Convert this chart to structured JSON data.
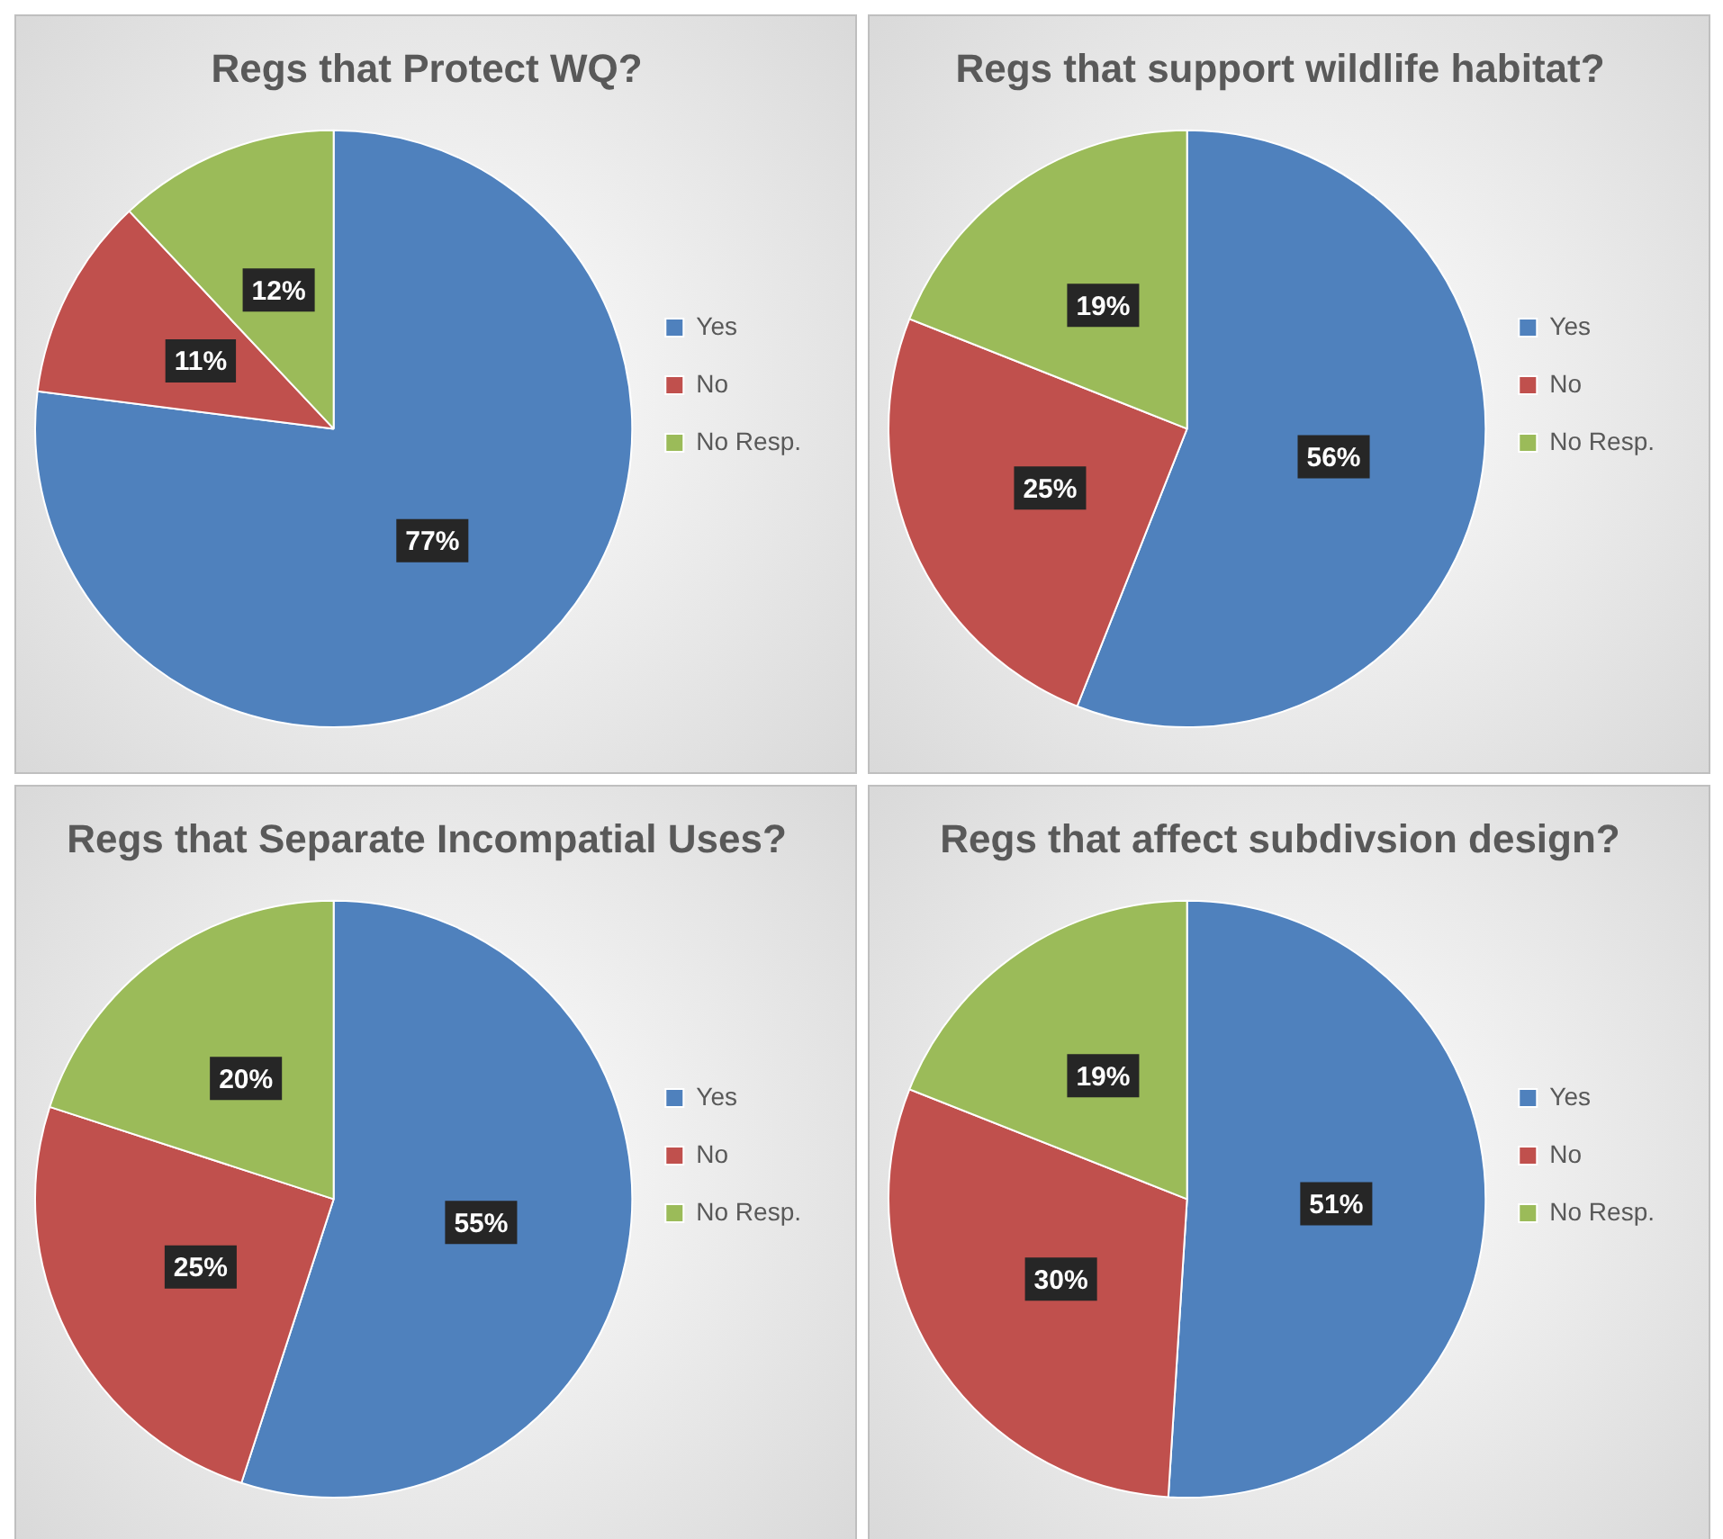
{
  "chart_data": [
    {
      "type": "pie",
      "title": "Regs that Protect WQ?",
      "categories": [
        "Yes",
        "No",
        "No Resp."
      ],
      "values": [
        77,
        11,
        12
      ],
      "value_labels": [
        "77%",
        "11%",
        "12%"
      ],
      "colors": [
        "#4f81bd",
        "#c0504d",
        "#9bbb59"
      ],
      "legend": "right"
    },
    {
      "type": "pie",
      "title": "Regs that support wildlife habitat?",
      "categories": [
        "Yes",
        "No",
        "No Resp."
      ],
      "values": [
        56,
        25,
        19
      ],
      "value_labels": [
        "56%",
        "25%",
        "19%"
      ],
      "colors": [
        "#4f81bd",
        "#c0504d",
        "#9bbb59"
      ],
      "legend": "right"
    },
    {
      "type": "pie",
      "title": "Regs that Separate Incompatial Uses?",
      "categories": [
        "Yes",
        "No",
        "No Resp."
      ],
      "values": [
        55,
        25,
        20
      ],
      "value_labels": [
        "55%",
        "25%",
        "20%"
      ],
      "colors": [
        "#4f81bd",
        "#c0504d",
        "#9bbb59"
      ],
      "legend": "right"
    },
    {
      "type": "pie",
      "title": "Regs that affect subdivsion design?",
      "categories": [
        "Yes",
        "No",
        "No Resp."
      ],
      "values": [
        51,
        30,
        19
      ],
      "value_labels": [
        "51%",
        "30%",
        "19%"
      ],
      "colors": [
        "#4f81bd",
        "#c0504d",
        "#9bbb59"
      ],
      "legend": "right"
    }
  ]
}
